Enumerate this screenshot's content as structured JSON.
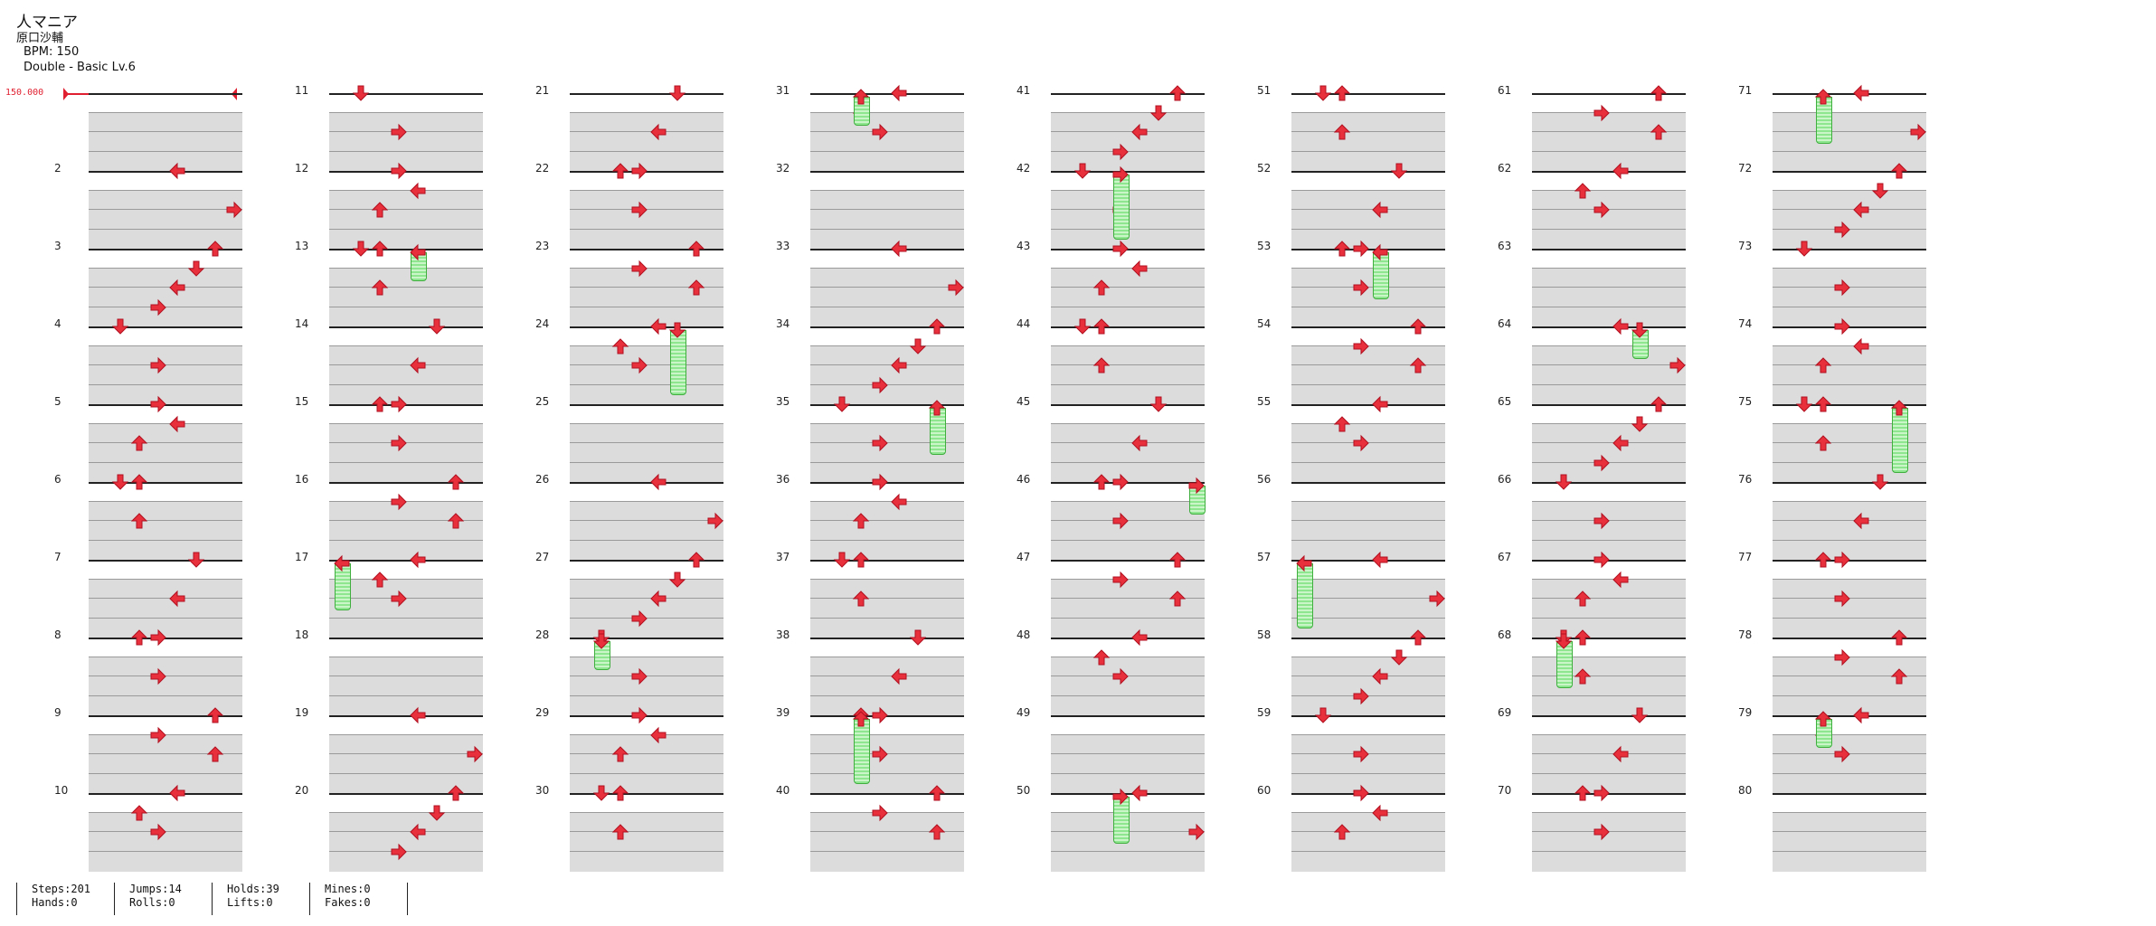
{
  "song": {
    "title": "人マニア",
    "artist": "原口沙輔",
    "bpm": "BPM: 150",
    "chart": "Double - Basic  Lv.6"
  },
  "bpm_marker": "150.000",
  "measures": [
    "2",
    "3",
    "4",
    "5",
    "6",
    "7",
    "8",
    "9",
    "10",
    "11",
    "12",
    "13",
    "14",
    "15",
    "16",
    "17",
    "18",
    "19",
    "20",
    "21",
    "22",
    "23",
    "24",
    "25",
    "26",
    "27",
    "28",
    "29",
    "30",
    "31",
    "32",
    "33",
    "34",
    "35",
    "36",
    "37",
    "38",
    "39",
    "40",
    "41",
    "42",
    "43",
    "44",
    "45",
    "46",
    "47",
    "48",
    "49",
    "50",
    "51",
    "52",
    "53",
    "54",
    "55",
    "56",
    "57",
    "58",
    "59",
    "60",
    "61",
    "62",
    "63",
    "64",
    "65",
    "66",
    "67",
    "68",
    "69",
    "70",
    "71",
    "72",
    "73",
    "74",
    "75",
    "76",
    "77",
    "78",
    "79",
    "80"
  ],
  "stats": {
    "steps": "Steps:201",
    "hands": "Hands:0",
    "jumps": "Jumps:14",
    "rolls": "Rolls:0",
    "holds": "Holds:39",
    "lifts": "Lifts:0",
    "mines": "Mines:0",
    "fakes": "Fakes:0"
  },
  "colors": {
    "arrow": "#e8303c",
    "hold": "#8ee68e",
    "bpm": "#e02030"
  }
}
